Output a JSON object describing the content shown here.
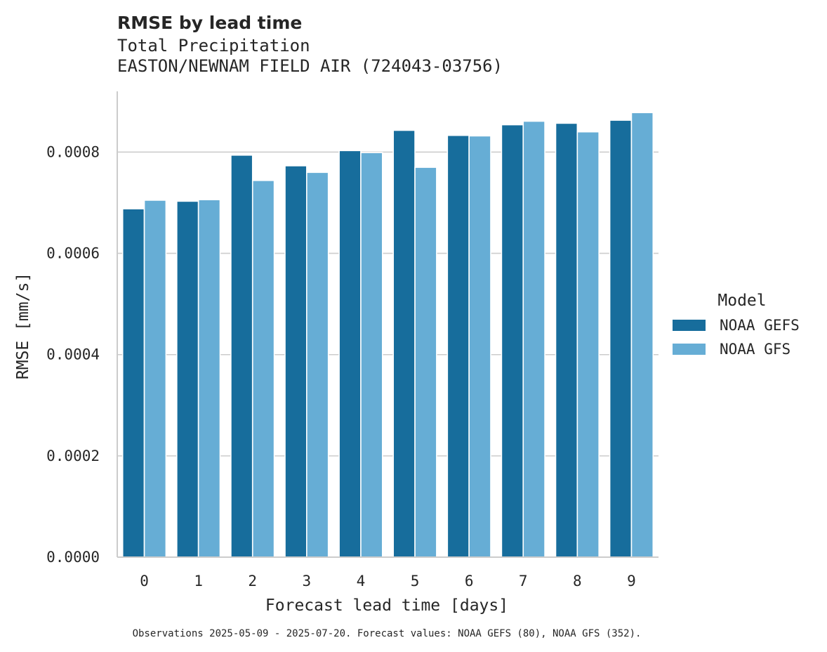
{
  "chart_data": {
    "type": "bar",
    "title": "RMSE by lead time",
    "subtitle_lines": [
      "Total Precipitation",
      "EASTON/NEWNAM FIELD AIR (724043-03756)"
    ],
    "xlabel": "Forecast lead time [days]",
    "ylabel": "RMSE [mm/s]",
    "categories": [
      "0",
      "1",
      "2",
      "3",
      "4",
      "5",
      "6",
      "7",
      "8",
      "9"
    ],
    "ylim": [
      0,
      0.00092
    ],
    "yticks": [
      0,
      0.0002,
      0.0004,
      0.0006,
      0.0008
    ],
    "ytick_labels": [
      "0.0000",
      "0.0002",
      "0.0004",
      "0.0006",
      "0.0008"
    ],
    "grid": "horizontal",
    "legend": {
      "title": "Model",
      "placement": "right"
    },
    "series": [
      {
        "name": "NOAA GEFS",
        "color": "#176d9c",
        "values": [
          0.000688,
          0.000703,
          0.000794,
          0.000773,
          0.000803,
          0.000843,
          0.000833,
          0.000854,
          0.000857,
          0.000863
        ]
      },
      {
        "name": "NOAA GFS",
        "color": "#66add5",
        "values": [
          0.000705,
          0.000706,
          0.000744,
          0.00076,
          0.000799,
          0.00077,
          0.000832,
          0.000861,
          0.00084,
          0.000878
        ]
      }
    ],
    "caption": "Observations 2025-05-09 - 2025-07-20. Forecast values: NOAA GEFS (80), NOAA GFS (352)."
  }
}
